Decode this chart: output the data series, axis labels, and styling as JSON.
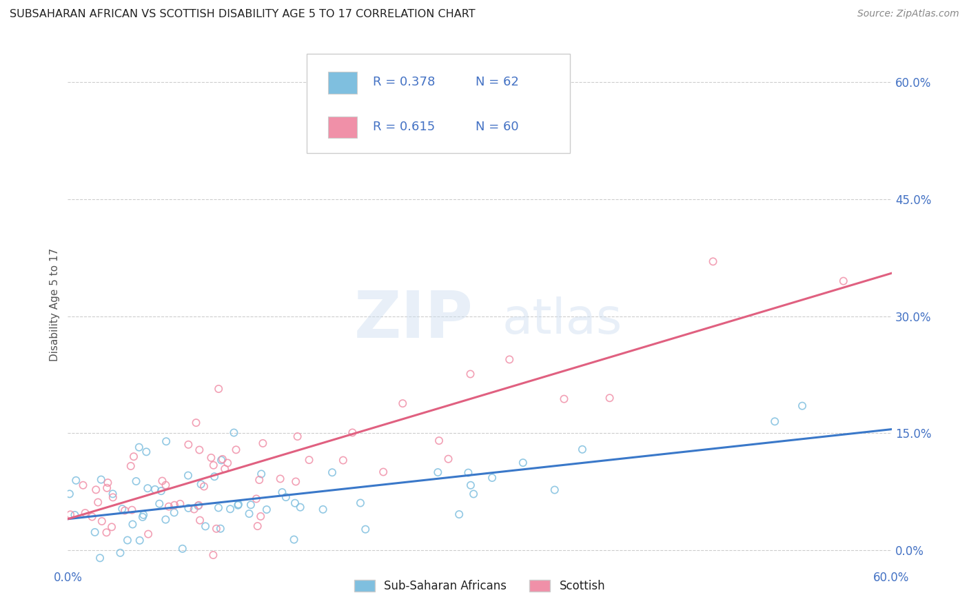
{
  "title": "SUBSAHARAN AFRICAN VS SCOTTISH DISABILITY AGE 5 TO 17 CORRELATION CHART",
  "source": "Source: ZipAtlas.com",
  "ylabel_label": "Disability Age 5 to 17",
  "xmin": 0.0,
  "xmax": 0.6,
  "ymin": -0.02,
  "ymax": 0.65,
  "yticks": [
    0.0,
    0.15,
    0.3,
    0.45,
    0.6
  ],
  "ytick_labels": [
    "0.0%",
    "15.0%",
    "30.0%",
    "45.0%",
    "60.0%"
  ],
  "xticks": [
    0.0,
    0.6
  ],
  "xtick_labels": [
    "0.0%",
    "60.0%"
  ],
  "blue_color": "#7fbfdf",
  "pink_color": "#f090a8",
  "blue_line_color": "#3a78c9",
  "pink_line_color": "#e06080",
  "blue_R": 0.378,
  "blue_N": 62,
  "pink_R": 0.615,
  "pink_N": 60,
  "watermark": "ZIPatlas",
  "grid_color": "#cccccc",
  "background_color": "#ffffff",
  "title_color": "#222222",
  "source_color": "#888888",
  "axis_label_color": "#555555",
  "tick_color": "#4472c4",
  "legend_R_color": "#4472c4",
  "legend_N_color": "#4472c4",
  "blue_line_start_y": 0.04,
  "blue_line_end_y": 0.155,
  "pink_line_start_y": 0.04,
  "pink_line_end_y": 0.355
}
